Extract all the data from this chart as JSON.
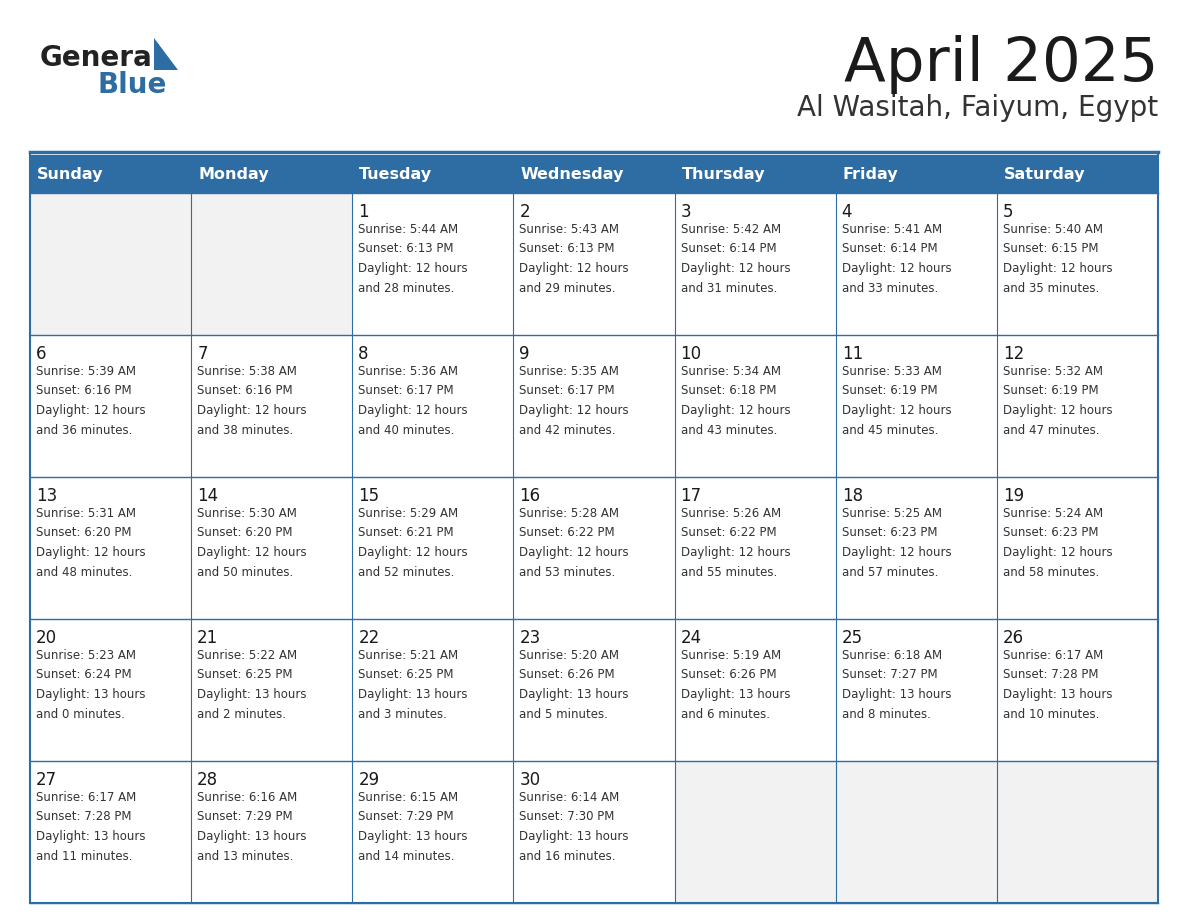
{
  "title": "April 2025",
  "subtitle": "Al Wasitah, Faiyum, Egypt",
  "header_color": "#2E6DA4",
  "header_text_color": "#FFFFFF",
  "cell_bg_color": "#FFFFFF",
  "alt_row_bg": "#F2F2F2",
  "border_color": "#2E6DA4",
  "text_color": "#333333",
  "logo_general_color": "#222222",
  "logo_blue_color": "#2E6DA4",
  "logo_triangle_color": "#2E6DA4",
  "days_of_week": [
    "Sunday",
    "Monday",
    "Tuesday",
    "Wednesday",
    "Thursday",
    "Friday",
    "Saturday"
  ],
  "weeks": [
    [
      {
        "day": "",
        "info": ""
      },
      {
        "day": "",
        "info": ""
      },
      {
        "day": "1",
        "info": "Sunrise: 5:44 AM\nSunset: 6:13 PM\nDaylight: 12 hours\nand 28 minutes."
      },
      {
        "day": "2",
        "info": "Sunrise: 5:43 AM\nSunset: 6:13 PM\nDaylight: 12 hours\nand 29 minutes."
      },
      {
        "day": "3",
        "info": "Sunrise: 5:42 AM\nSunset: 6:14 PM\nDaylight: 12 hours\nand 31 minutes."
      },
      {
        "day": "4",
        "info": "Sunrise: 5:41 AM\nSunset: 6:14 PM\nDaylight: 12 hours\nand 33 minutes."
      },
      {
        "day": "5",
        "info": "Sunrise: 5:40 AM\nSunset: 6:15 PM\nDaylight: 12 hours\nand 35 minutes."
      }
    ],
    [
      {
        "day": "6",
        "info": "Sunrise: 5:39 AM\nSunset: 6:16 PM\nDaylight: 12 hours\nand 36 minutes."
      },
      {
        "day": "7",
        "info": "Sunrise: 5:38 AM\nSunset: 6:16 PM\nDaylight: 12 hours\nand 38 minutes."
      },
      {
        "day": "8",
        "info": "Sunrise: 5:36 AM\nSunset: 6:17 PM\nDaylight: 12 hours\nand 40 minutes."
      },
      {
        "day": "9",
        "info": "Sunrise: 5:35 AM\nSunset: 6:17 PM\nDaylight: 12 hours\nand 42 minutes."
      },
      {
        "day": "10",
        "info": "Sunrise: 5:34 AM\nSunset: 6:18 PM\nDaylight: 12 hours\nand 43 minutes."
      },
      {
        "day": "11",
        "info": "Sunrise: 5:33 AM\nSunset: 6:19 PM\nDaylight: 12 hours\nand 45 minutes."
      },
      {
        "day": "12",
        "info": "Sunrise: 5:32 AM\nSunset: 6:19 PM\nDaylight: 12 hours\nand 47 minutes."
      }
    ],
    [
      {
        "day": "13",
        "info": "Sunrise: 5:31 AM\nSunset: 6:20 PM\nDaylight: 12 hours\nand 48 minutes."
      },
      {
        "day": "14",
        "info": "Sunrise: 5:30 AM\nSunset: 6:20 PM\nDaylight: 12 hours\nand 50 minutes."
      },
      {
        "day": "15",
        "info": "Sunrise: 5:29 AM\nSunset: 6:21 PM\nDaylight: 12 hours\nand 52 minutes."
      },
      {
        "day": "16",
        "info": "Sunrise: 5:28 AM\nSunset: 6:22 PM\nDaylight: 12 hours\nand 53 minutes."
      },
      {
        "day": "17",
        "info": "Sunrise: 5:26 AM\nSunset: 6:22 PM\nDaylight: 12 hours\nand 55 minutes."
      },
      {
        "day": "18",
        "info": "Sunrise: 5:25 AM\nSunset: 6:23 PM\nDaylight: 12 hours\nand 57 minutes."
      },
      {
        "day": "19",
        "info": "Sunrise: 5:24 AM\nSunset: 6:23 PM\nDaylight: 12 hours\nand 58 minutes."
      }
    ],
    [
      {
        "day": "20",
        "info": "Sunrise: 5:23 AM\nSunset: 6:24 PM\nDaylight: 13 hours\nand 0 minutes."
      },
      {
        "day": "21",
        "info": "Sunrise: 5:22 AM\nSunset: 6:25 PM\nDaylight: 13 hours\nand 2 minutes."
      },
      {
        "day": "22",
        "info": "Sunrise: 5:21 AM\nSunset: 6:25 PM\nDaylight: 13 hours\nand 3 minutes."
      },
      {
        "day": "23",
        "info": "Sunrise: 5:20 AM\nSunset: 6:26 PM\nDaylight: 13 hours\nand 5 minutes."
      },
      {
        "day": "24",
        "info": "Sunrise: 5:19 AM\nSunset: 6:26 PM\nDaylight: 13 hours\nand 6 minutes."
      },
      {
        "day": "25",
        "info": "Sunrise: 6:18 AM\nSunset: 7:27 PM\nDaylight: 13 hours\nand 8 minutes."
      },
      {
        "day": "26",
        "info": "Sunrise: 6:17 AM\nSunset: 7:28 PM\nDaylight: 13 hours\nand 10 minutes."
      }
    ],
    [
      {
        "day": "27",
        "info": "Sunrise: 6:17 AM\nSunset: 7:28 PM\nDaylight: 13 hours\nand 11 minutes."
      },
      {
        "day": "28",
        "info": "Sunrise: 6:16 AM\nSunset: 7:29 PM\nDaylight: 13 hours\nand 13 minutes."
      },
      {
        "day": "29",
        "info": "Sunrise: 6:15 AM\nSunset: 7:29 PM\nDaylight: 13 hours\nand 14 minutes."
      },
      {
        "day": "30",
        "info": "Sunrise: 6:14 AM\nSunset: 7:30 PM\nDaylight: 13 hours\nand 16 minutes."
      },
      {
        "day": "",
        "info": ""
      },
      {
        "day": "",
        "info": ""
      },
      {
        "day": "",
        "info": ""
      }
    ]
  ]
}
